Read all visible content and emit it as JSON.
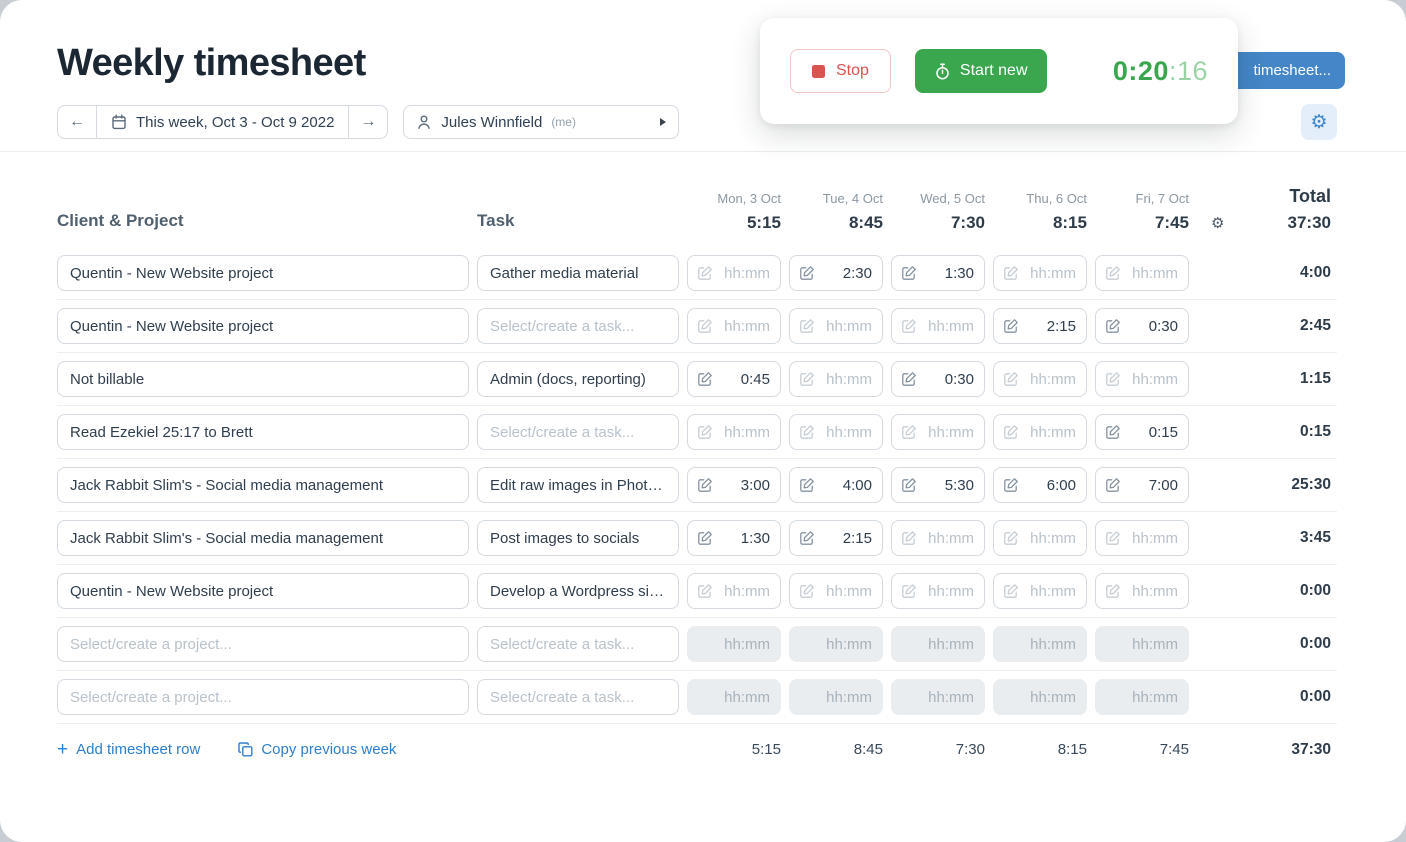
{
  "page": {
    "title": "Weekly timesheet"
  },
  "icons": {
    "prev": "←",
    "next": "→",
    "gear": "⚙",
    "plus": "+"
  },
  "timer": {
    "stop_label": "Stop",
    "start_label": "Start new",
    "time_main": "0:20",
    "time_seconds": ":16",
    "green": "#3aa74e",
    "red": "#d9534f"
  },
  "save_button": {
    "label": "timesheet...",
    "color": "#4486c7"
  },
  "toolbar": {
    "week_label": "This week, Oct 3 - Oct 9 2022",
    "user_name": "Jules Winnfield",
    "user_suffix": "(me)"
  },
  "table": {
    "client_header": "Client & Project",
    "task_header": "Task",
    "total_header": "Total",
    "total_value": "37:30",
    "time_placeholder": "hh:mm",
    "project_placeholder": "Select/create a project...",
    "task_placeholder": "Select/create a task...",
    "days": [
      {
        "label": "Mon, 3 Oct",
        "total": "5:15"
      },
      {
        "label": "Tue, 4 Oct",
        "total": "8:45"
      },
      {
        "label": "Wed, 5 Oct",
        "total": "7:30"
      },
      {
        "label": "Thu, 6 Oct",
        "total": "8:15"
      },
      {
        "label": "Fri, 7 Oct",
        "total": "7:45"
      }
    ],
    "rows": [
      {
        "project": "Quentin - New Website project",
        "task": "Gather media material",
        "times": [
          "",
          "2:30",
          "1:30",
          "",
          ""
        ],
        "total": "4:00",
        "disabled": false
      },
      {
        "project": "Quentin - New Website project",
        "task": "",
        "times": [
          "",
          "",
          "",
          "2:15",
          "0:30"
        ],
        "total": "2:45",
        "disabled": false
      },
      {
        "project": "Not billable",
        "task": "Admin (docs, reporting)",
        "times": [
          "0:45",
          "",
          "0:30",
          "",
          ""
        ],
        "total": "1:15",
        "disabled": false
      },
      {
        "project": "Read Ezekiel 25:17 to Brett",
        "task": "",
        "times": [
          "",
          "",
          "",
          "",
          "0:15"
        ],
        "total": "0:15",
        "disabled": false
      },
      {
        "project": "Jack Rabbit Slim's - Social media management",
        "task": "Edit raw images in Phot…",
        "times": [
          "3:00",
          "4:00",
          "5:30",
          "6:00",
          "7:00"
        ],
        "total": "25:30",
        "disabled": false
      },
      {
        "project": "Jack Rabbit Slim's - Social media management",
        "task": "Post images to socials",
        "times": [
          "1:30",
          "2:15",
          "",
          "",
          ""
        ],
        "total": "3:45",
        "disabled": false
      },
      {
        "project": "Quentin - New Website project",
        "task": "Develop a Wordpress si…",
        "times": [
          "",
          "",
          "",
          "",
          ""
        ],
        "total": "0:00",
        "disabled": false
      },
      {
        "project": "",
        "task": "",
        "times": [
          "",
          "",
          "",
          "",
          ""
        ],
        "total": "0:00",
        "disabled": true
      },
      {
        "project": "",
        "task": "",
        "times": [
          "",
          "",
          "",
          "",
          ""
        ],
        "total": "0:00",
        "disabled": true
      }
    ],
    "footer": {
      "add_row_label": "Add timesheet row",
      "copy_week_label": "Copy previous week",
      "day_totals": [
        "5:15",
        "8:45",
        "7:30",
        "8:15",
        "7:45"
      ],
      "total": "37:30"
    }
  }
}
